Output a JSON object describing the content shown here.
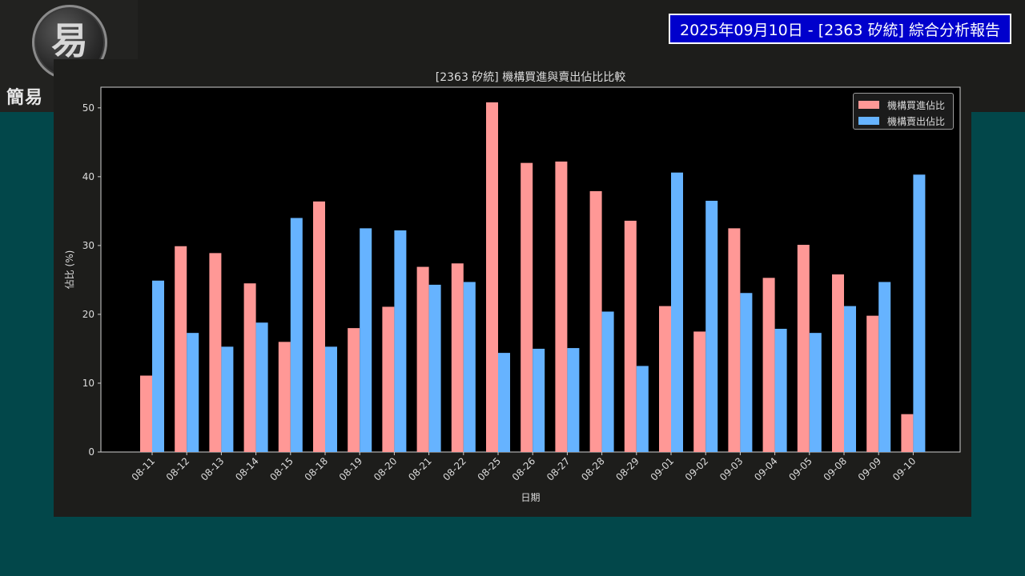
{
  "header": {
    "logo_glyph": "易",
    "logo_text": "簡易",
    "report_title": "2025年09月10日 - [2363 矽統] 綜合分析報告"
  },
  "chart_data": {
    "type": "bar",
    "title": "[2363 矽統] 機構買進與賣出佔比比較",
    "xlabel": "日期",
    "ylabel": "佔比 (%)",
    "ylim": [
      0,
      53
    ],
    "yticks": [
      0,
      10,
      20,
      30,
      40,
      50
    ],
    "grid": false,
    "legend_position": "top-right",
    "categories": [
      "08-11",
      "08-12",
      "08-13",
      "08-14",
      "08-15",
      "08-18",
      "08-19",
      "08-20",
      "08-21",
      "08-22",
      "08-25",
      "08-26",
      "08-27",
      "08-28",
      "08-29",
      "09-01",
      "09-02",
      "09-03",
      "09-04",
      "09-05",
      "09-08",
      "09-09",
      "09-10"
    ],
    "series": [
      {
        "name": "機構買進佔比",
        "color": "#ff9896",
        "values": [
          11.1,
          29.9,
          28.9,
          24.5,
          16.0,
          36.4,
          18.0,
          21.1,
          26.9,
          27.4,
          50.8,
          42.0,
          42.2,
          37.9,
          33.6,
          21.2,
          17.5,
          32.5,
          25.3,
          30.1,
          25.8,
          19.8,
          5.5
        ]
      },
      {
        "name": "機構賣出佔比",
        "color": "#66b3ff",
        "values": [
          24.9,
          17.3,
          15.3,
          18.8,
          34.0,
          15.3,
          32.5,
          32.2,
          24.3,
          24.7,
          14.4,
          15.0,
          15.1,
          20.4,
          12.5,
          40.6,
          36.5,
          23.1,
          17.9,
          17.3,
          21.2,
          24.7,
          40.3
        ]
      }
    ]
  }
}
